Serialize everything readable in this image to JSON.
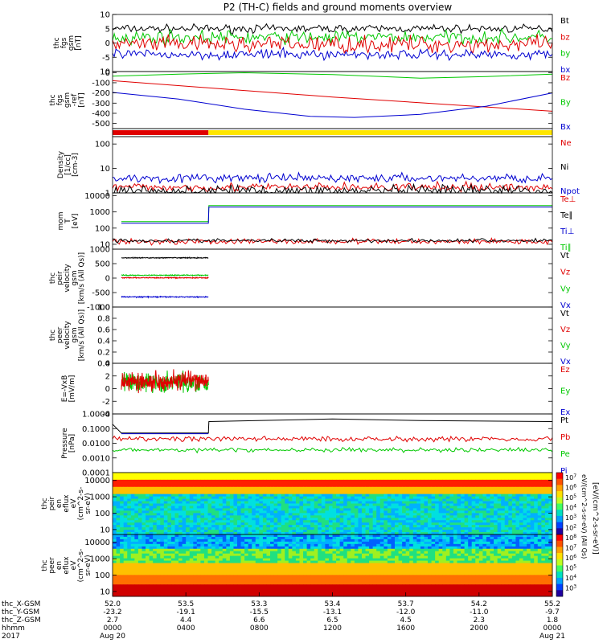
{
  "title": "P2 (TH-C) fields and ground moments overview",
  "colors": {
    "black": "#000000",
    "red": "#e00000",
    "green": "#00c800",
    "blue": "#0000d0",
    "yellow": "#ffe600"
  },
  "chart_data": [
    {
      "id": "fgs",
      "type": "line",
      "ylabel": [
        "thc",
        "fgs",
        "gsm",
        "[nT]"
      ],
      "ylim": [
        -10,
        10
      ],
      "yticks": [
        "10",
        "5",
        "0",
        "-5"
      ],
      "tickvals": [
        10,
        5,
        0,
        -5
      ],
      "legend": [
        "Bt",
        "bz",
        "by",
        "bx"
      ],
      "legend_colors": [
        "black",
        "red",
        "green",
        "blue"
      ],
      "series": [
        {
          "name": "Bt",
          "color": "black",
          "base": 5,
          "noise": 1.2
        },
        {
          "name": "by",
          "color": "green",
          "base": 2,
          "noise": 2
        },
        {
          "name": "bz",
          "color": "red",
          "base": -0.5,
          "noise": 2.5
        },
        {
          "name": "bx",
          "color": "blue",
          "base": -4,
          "noise": 1.5
        }
      ]
    },
    {
      "id": "fgs_ref",
      "type": "line",
      "ylabel": [
        "thc",
        "fgs",
        "gsm",
        "-ref",
        "[nT]"
      ],
      "ylim": [
        -550,
        10
      ],
      "yticks": [
        "10",
        "0",
        "-100",
        "-200",
        "-300",
        "-400",
        "-500"
      ],
      "tickvals": [
        10,
        0,
        -100,
        -200,
        -300,
        -400,
        -500
      ],
      "legend": [
        "Bz",
        "By",
        "Bx"
      ],
      "legend_colors": [
        "red",
        "green",
        "blue"
      ],
      "series": [
        {
          "name": "By",
          "color": "green",
          "x": [
            0,
            0.15,
            0.3,
            0.5,
            0.7,
            0.85,
            1
          ],
          "y": [
            -35,
            -15,
            -2,
            -20,
            -55,
            -40,
            -15
          ]
        },
        {
          "name": "Bz",
          "color": "red",
          "x": [
            0,
            0.25,
            0.5,
            0.75,
            1
          ],
          "y": [
            -80,
            -160,
            -240,
            -310,
            -380
          ]
        },
        {
          "name": "Bx",
          "color": "blue",
          "x": [
            0,
            0.15,
            0.3,
            0.45,
            0.55,
            0.7,
            0.85,
            1
          ],
          "y": [
            -195,
            -260,
            -360,
            -430,
            -440,
            -410,
            -330,
            -200
          ]
        }
      ]
    },
    {
      "id": "mode_bar",
      "type": "bar",
      "segments": [
        {
          "from": 0,
          "to": 0.218,
          "color": "red"
        },
        {
          "from": 0.218,
          "to": 1,
          "color": "yellow"
        }
      ]
    },
    {
      "id": "density",
      "type": "line",
      "ylabel": [
        "Density",
        "[1/cc]",
        "[cm-3]"
      ],
      "scale": "log",
      "ylim": [
        1,
        200
      ],
      "yticks": [
        "100",
        "10",
        "1"
      ],
      "tickvals": [
        100,
        10,
        1
      ],
      "legend": [
        "Ne",
        "Ni",
        "Npot"
      ],
      "legend_colors": [
        "red",
        "black",
        "blue"
      ],
      "series": [
        {
          "name": "Npot",
          "color": "blue",
          "base": 4,
          "noise": 0.15
        },
        {
          "name": "Ne",
          "color": "red",
          "base": 1.7,
          "noise": 0.15
        },
        {
          "name": "Ni",
          "color": "black",
          "base": 1.2,
          "noise": 0.2
        }
      ]
    },
    {
      "id": "temperature",
      "type": "line",
      "ylabel": [
        "mom",
        "T",
        "[eV]"
      ],
      "scale": "log",
      "ylim": [
        5,
        15000
      ],
      "yticks": [
        "10000",
        "1000",
        "100",
        "10"
      ],
      "tickvals": [
        10000,
        1000,
        100,
        10
      ],
      "legend": [
        "Te⊥",
        "Te∥",
        "Ti⊥",
        "Ti∥"
      ],
      "legend_colors": [
        "red",
        "black",
        "blue",
        "green"
      ],
      "series": [
        {
          "name": "Ti",
          "color": "green",
          "x": [
            0.02,
            0.218,
            0.219,
            1
          ],
          "y": [
            250,
            250,
            2500,
            2500
          ]
        },
        {
          "name": "Ti⊥",
          "color": "blue",
          "x": [
            0.02,
            0.218,
            0.219,
            1
          ],
          "y": [
            200,
            200,
            2000,
            2000
          ]
        },
        {
          "name": "Te",
          "color": "red",
          "base": 15,
          "noise": 0.15
        },
        {
          "name": "Te∥",
          "color": "black",
          "base": 17,
          "noise": 0.1
        }
      ]
    },
    {
      "id": "peir_velocity",
      "type": "line",
      "ylabel": [
        "thc",
        "peir",
        "velocity",
        "gsm",
        "[km/s (All Qs)]"
      ],
      "ylim": [
        -1000,
        1000
      ],
      "yticks": [
        "1000",
        "500",
        "0",
        "-500",
        "-1000"
      ],
      "tickvals": [
        1000,
        500,
        0,
        -500,
        -1000
      ],
      "legend": [
        "Vt",
        "Vz",
        "Vy",
        "Vx"
      ],
      "legend_colors": [
        "black",
        "red",
        "green",
        "blue"
      ],
      "x_extent": [
        0.02,
        0.218
      ],
      "series": [
        {
          "name": "Vt",
          "color": "black",
          "base": 700
        },
        {
          "name": "Vy",
          "color": "green",
          "base": 100
        },
        {
          "name": "Vz",
          "color": "red",
          "base": 10
        },
        {
          "name": "Vx",
          "color": "blue",
          "base": -650
        }
      ]
    },
    {
      "id": "peer_velocity",
      "type": "line",
      "ylabel": [
        "thc",
        "peer",
        "velocity",
        "gsm",
        "[km/s (All Qs)]"
      ],
      "ylim": [
        0,
        1
      ],
      "yticks": [
        "1.0",
        "0.8",
        "0.6",
        "0.4",
        "0.2",
        "0.0"
      ],
      "tickvals": [
        1,
        0.8,
        0.6,
        0.4,
        0.2,
        0
      ],
      "legend": [
        "Vt",
        "Vz",
        "Vy",
        "Vx"
      ],
      "legend_colors": [
        "black",
        "red",
        "green",
        "blue"
      ],
      "series": []
    },
    {
      "id": "efield",
      "type": "line",
      "ylabel": [
        "E=-VxB",
        "[mV/m]"
      ],
      "ylim": [
        -4,
        4
      ],
      "yticks": [
        "4",
        "2",
        "0",
        "-2",
        "-4"
      ],
      "tickvals": [
        4,
        2,
        0,
        -2,
        -4
      ],
      "legend": [
        "Ez",
        "Ey",
        "Ex"
      ],
      "legend_colors": [
        "red",
        "green",
        "blue"
      ],
      "x_extent": [
        0.02,
        0.218
      ],
      "series": [
        {
          "name": "Ey",
          "color": "green",
          "base": 1,
          "noise": 1.3
        },
        {
          "name": "Ez",
          "color": "red",
          "base": 1.2,
          "noise": 1.3
        }
      ]
    },
    {
      "id": "pressure",
      "type": "line",
      "ylabel": [
        "Pressure",
        "[nPa]"
      ],
      "scale": "log",
      "ylim": [
        0.0001,
        1
      ],
      "yticks": [
        "1.0000",
        "0.1000",
        "0.0100",
        "0.0010",
        "0.0001"
      ],
      "tickvals": [
        1,
        0.1,
        0.01,
        0.001,
        0.0001
      ],
      "legend": [
        "Pt",
        "Pb",
        "Pe",
        "Pi"
      ],
      "legend_colors": [
        "black",
        "red",
        "green",
        "blue"
      ],
      "series": [
        {
          "name": "Pt",
          "color": "black",
          "x": [
            0,
            0.02,
            0.218,
            0.219,
            0.5,
            0.7,
            1
          ],
          "y": [
            0.2,
            0.05,
            0.05,
            0.3,
            0.45,
            0.35,
            0.3
          ]
        },
        {
          "name": "Pi",
          "color": "blue",
          "x": [
            0.02,
            0.218
          ],
          "y": [
            0.045,
            0.045
          ]
        },
        {
          "name": "Pb",
          "color": "red",
          "base": 0.02,
          "noise": 0.15
        },
        {
          "name": "Pe",
          "color": "green",
          "base": 0.0035,
          "noise": 0.12
        }
      ]
    },
    {
      "id": "peir_spec",
      "type": "heatmap",
      "ylabel": [
        "thc",
        "peir",
        "en",
        "eflux",
        "eV",
        "(cm^2-s-",
        "sr-eV)"
      ],
      "scale": "log",
      "ylim": [
        5,
        30000
      ],
      "yticks": [
        "10000",
        "1000",
        "100",
        "10"
      ],
      "tickvals": [
        10000,
        1000,
        100,
        10
      ]
    },
    {
      "id": "peer_spec",
      "type": "heatmap",
      "ylabel": [
        "thc",
        "peer",
        "en",
        "eflux",
        "eV",
        "(cm^2-s-",
        "sr-eV)"
      ],
      "scale": "log",
      "ylim": [
        5,
        30000
      ],
      "yticks": [
        "10000",
        "1000",
        "100",
        "10"
      ],
      "tickvals": [
        10000,
        1000,
        100,
        10
      ]
    }
  ],
  "colorbar": {
    "ticks": [
      {
        "base": "10",
        "exp": "7"
      },
      {
        "base": "10",
        "exp": "6"
      },
      {
        "base": "10",
        "exp": "5"
      },
      {
        "base": "10",
        "exp": "4"
      },
      {
        "base": "10",
        "exp": "3"
      },
      {
        "base": "10",
        "exp": "2"
      },
      {
        "base": "10",
        "exp": "8"
      },
      {
        "base": "10",
        "exp": "7"
      },
      {
        "base": "10",
        "exp": "6"
      },
      {
        "base": "10",
        "exp": "5"
      },
      {
        "base": "10",
        "exp": "4"
      },
      {
        "base": "10",
        "exp": "3"
      }
    ],
    "units_top": "eV/(cm^2-s-sr-eV)",
    "units_top_suffix": "(All Qs)",
    "units_bottom": "[eV/(cm^2-s-sr-eV)]"
  },
  "x_axis": {
    "row_labels": [
      "thc_X-GSM",
      "thc_Y-GSM",
      "thc_Z-GSM",
      "hhmm",
      "2017"
    ],
    "ticks": [
      {
        "vals": [
          "52.0",
          "-23.2",
          "2.7",
          "0000"
        ],
        "date": "Aug 20"
      },
      {
        "vals": [
          "53.5",
          "-19.1",
          "4.4",
          "0400"
        ],
        "date": ""
      },
      {
        "vals": [
          "53.3",
          "-15.5",
          "6.6",
          "0800"
        ],
        "date": ""
      },
      {
        "vals": [
          "53.4",
          "-13.1",
          "6.5",
          "1200"
        ],
        "date": ""
      },
      {
        "vals": [
          "53.7",
          "-12.0",
          "4.5",
          "1600"
        ],
        "date": ""
      },
      {
        "vals": [
          "54.2",
          "-11.0",
          "2.3",
          "2000"
        ],
        "date": ""
      },
      {
        "vals": [
          "55.2",
          "-9.7",
          "1.8",
          "0000"
        ],
        "date": "Aug 21"
      }
    ]
  }
}
